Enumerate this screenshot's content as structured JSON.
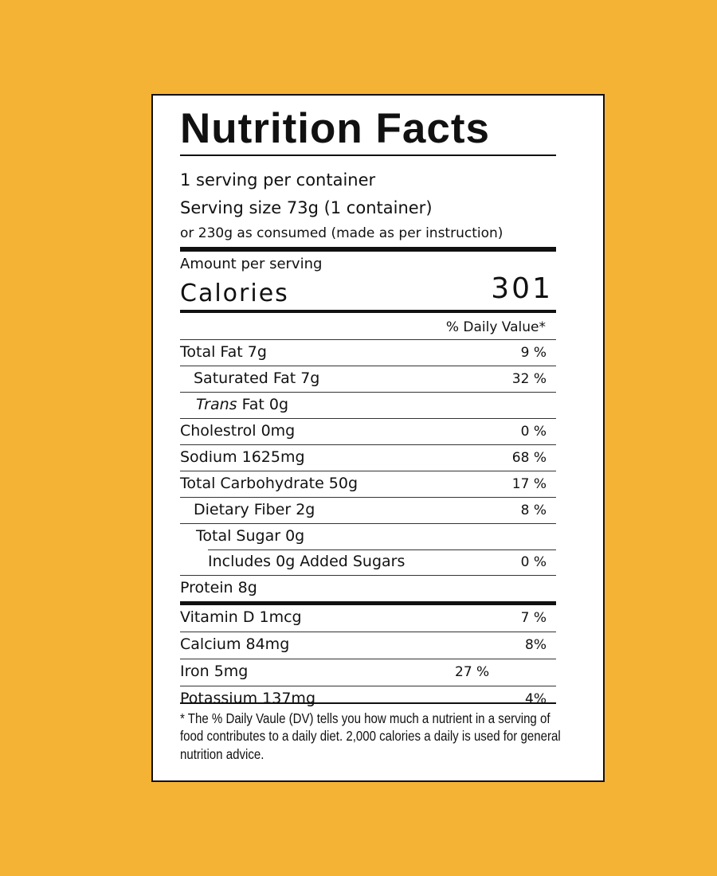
{
  "label": {
    "title": "Nutrition Facts",
    "servings_per_container": "1 serving per container",
    "serving_size": "Serving size  73g (1 container)",
    "as_consumed": "or 230g as consumed (made as per instruction)",
    "amount_per_serving": "Amount per serving",
    "calories_label": "Calories",
    "calories_value": "301",
    "daily_value_header": "% Daily Value*",
    "nutrients": [
      {
        "name": "Total Fat 7g",
        "pct": "9 %"
      },
      {
        "name": "Saturated Fat 7g",
        "pct": "32 %"
      },
      {
        "name_italic": "Trans",
        "name_rest": " Fat 0g",
        "pct": ""
      },
      {
        "name": "Cholestrol 0mg",
        "pct": "0 %"
      },
      {
        "name": "Sodium 1625mg",
        "pct": "68 %"
      },
      {
        "name": "Total Carbohydrate 50g",
        "pct": "17 %"
      },
      {
        "name": "Dietary Fiber 2g",
        "pct": "8 %"
      },
      {
        "name": "Total Sugar 0g",
        "pct": ""
      },
      {
        "name": "Includes 0g Added Sugars",
        "pct": "0 %"
      },
      {
        "name": "Protein 8g",
        "pct": ""
      }
    ],
    "vitamins": [
      {
        "name": "Vitamin D 1mcg",
        "pct": "7 %"
      },
      {
        "name": "Calcium 84mg",
        "pct": "8%"
      },
      {
        "name": "Iron 5mg",
        "pct": "27 %"
      },
      {
        "name": "Potassium 137mg",
        "pct": "4%"
      }
    ],
    "footnote": "* The % Daily Vaule (DV) tells you how much a nutrient in a serving of food contributes to a daily diet. 2,000 calories a daily is used for general nutrition advice."
  },
  "colors": {
    "background": "#F5B335",
    "panel": "#FFFFFF",
    "ink": "#111111"
  }
}
